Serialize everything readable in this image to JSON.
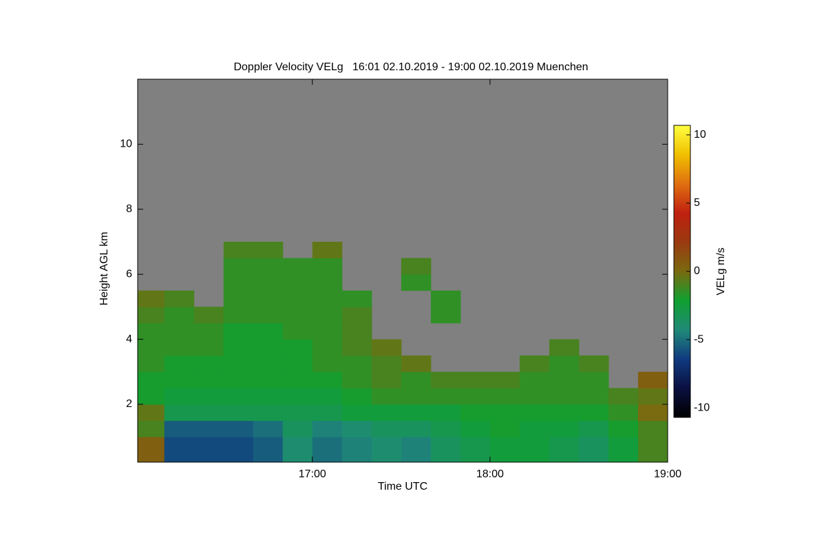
{
  "chart_data": {
    "type": "heatmap",
    "title": "Doppler Velocity VELg   16:01 02.10.2019 - 19:00 02.10.2019 Muenchen",
    "xlabel": "Time UTC",
    "ylabel": "Height AGL km",
    "colorbar_label": "VELg m/s",
    "xlim": [
      16.0167,
      19
    ],
    "xticks": [
      {
        "value": 17,
        "label": "17:00"
      },
      {
        "value": 18,
        "label": "18:00"
      },
      {
        "value": 19,
        "label": "19:00"
      }
    ],
    "ylim": [
      0.22,
      12
    ],
    "yticks": [
      2,
      4,
      6,
      8,
      10
    ],
    "clim": [
      -10.7,
      10.7
    ],
    "cticks": [
      -10,
      -5,
      0,
      5,
      10
    ],
    "colormap": [
      "#000000",
      "#0a1040",
      "#103a80",
      "#208a78",
      "#10a030",
      "#7a6a10",
      "#9a3a10",
      "#c02010",
      "#e07010",
      "#f0c000",
      "#ffff40"
    ],
    "background_color": "#808080",
    "xbins": [
      16.0167,
      16.1667,
      16.3333,
      16.5,
      16.6667,
      16.8333,
      17,
      17.1667,
      17.3333,
      17.5,
      17.6667,
      17.8333,
      18,
      18.1667,
      18.3333,
      18.5,
      18.6667,
      18.8333,
      19
    ],
    "ybins": [
      0.22,
      1,
      1.5,
      2,
      2.5,
      3,
      3.5,
      4,
      4.5,
      5,
      5.5,
      6,
      6.5,
      7
    ],
    "values": [
      [
        0.5,
        -6,
        -6,
        -6,
        -5.5,
        -4,
        -5,
        -4.5,
        -4,
        -4.5,
        -3.5,
        -3,
        -2.5,
        -2.5,
        -3,
        -3.5,
        -2.5,
        -1
      ],
      [
        -1,
        -5.5,
        -5.5,
        -5.5,
        -5,
        -3.5,
        -4.5,
        -4,
        -3.5,
        -3.5,
        -3,
        -2.5,
        -2,
        -2.5,
        -2.5,
        -3,
        -2,
        -1
      ],
      [
        -0.5,
        -3,
        -3,
        -3,
        -3,
        -3,
        -3,
        -2.5,
        -2.5,
        -2.5,
        -2.5,
        -2,
        -2,
        -2,
        -2,
        -2,
        -1.5,
        0
      ],
      [
        -2,
        -2.5,
        -2.5,
        -2.5,
        -2.5,
        -2.5,
        -2.5,
        -2,
        -1.5,
        -1.5,
        -1.5,
        -1.5,
        -1.5,
        -1.5,
        -1.5,
        -1.5,
        -1,
        -0.5
      ],
      [
        -2,
        -2,
        -2,
        -2,
        -2,
        -2,
        -2,
        -1.5,
        -1,
        -1.5,
        -1,
        -1,
        -1,
        -1.5,
        -1.5,
        -1.5,
        null,
        0.5
      ],
      [
        -1.5,
        -2,
        -2,
        -2,
        -2,
        -2,
        -1.5,
        -1.5,
        -1,
        -0.5,
        null,
        null,
        null,
        -1,
        -1.5,
        -1,
        null,
        null
      ],
      [
        -1.5,
        -1.5,
        -1.5,
        -2,
        -2,
        -2,
        -1.5,
        -1,
        -0.5,
        null,
        null,
        null,
        null,
        null,
        -1,
        null,
        null,
        null
      ],
      [
        -1.5,
        -1.5,
        -1.5,
        -2,
        -2,
        -1.5,
        -1.5,
        -1,
        null,
        null,
        null,
        null,
        null,
        null,
        null,
        null,
        null,
        null
      ],
      [
        -1,
        -1.5,
        -1,
        -1.5,
        -1.5,
        -1.5,
        -1.5,
        -1,
        null,
        null,
        -1.5,
        null,
        null,
        null,
        null,
        null,
        null,
        null
      ],
      [
        -0.5,
        -1,
        null,
        -1.5,
        -1.5,
        -1.5,
        -1.5,
        -1.5,
        null,
        null,
        -1.5,
        null,
        null,
        null,
        null,
        null,
        null,
        null
      ],
      [
        null,
        null,
        null,
        -1.5,
        -1.5,
        -1.5,
        -1.5,
        null,
        null,
        -1.5,
        null,
        null,
        null,
        null,
        null,
        null,
        null,
        null
      ],
      [
        null,
        null,
        null,
        -1.5,
        -1.5,
        -1.5,
        -1.5,
        null,
        null,
        -1,
        null,
        null,
        null,
        null,
        null,
        null,
        null,
        null
      ],
      [
        null,
        null,
        null,
        -1,
        -1,
        null,
        -0.5,
        null,
        null,
        null,
        null,
        null,
        null,
        null,
        null,
        null,
        null,
        null
      ]
    ]
  }
}
